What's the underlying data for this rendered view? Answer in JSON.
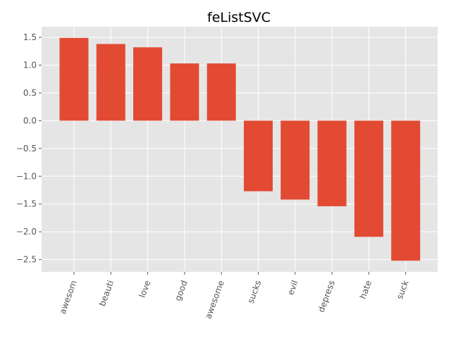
{
  "chart_data": {
    "type": "bar",
    "title": "feListSVC",
    "xlabel": "",
    "ylabel": "",
    "categories": [
      "awesom",
      "beauti",
      "love",
      "good",
      "awesome",
      "sucks",
      "evil",
      "depress",
      "hate",
      "suck"
    ],
    "values": [
      1.49,
      1.38,
      1.32,
      1.03,
      1.03,
      -1.27,
      -1.42,
      -1.54,
      -2.09,
      -2.52
    ],
    "ylim": [
      -2.72,
      1.69
    ],
    "yticks": [
      "1.5",
      "1.0",
      "0.5",
      "0.0",
      "−0.5",
      "−1.0",
      "−1.5",
      "−2.0",
      "−2.5"
    ],
    "grid": true,
    "legend": "none",
    "bar_color": "#E24A33",
    "axes_background": "#E5E5E5",
    "grid_color": "#FFFFFF"
  }
}
